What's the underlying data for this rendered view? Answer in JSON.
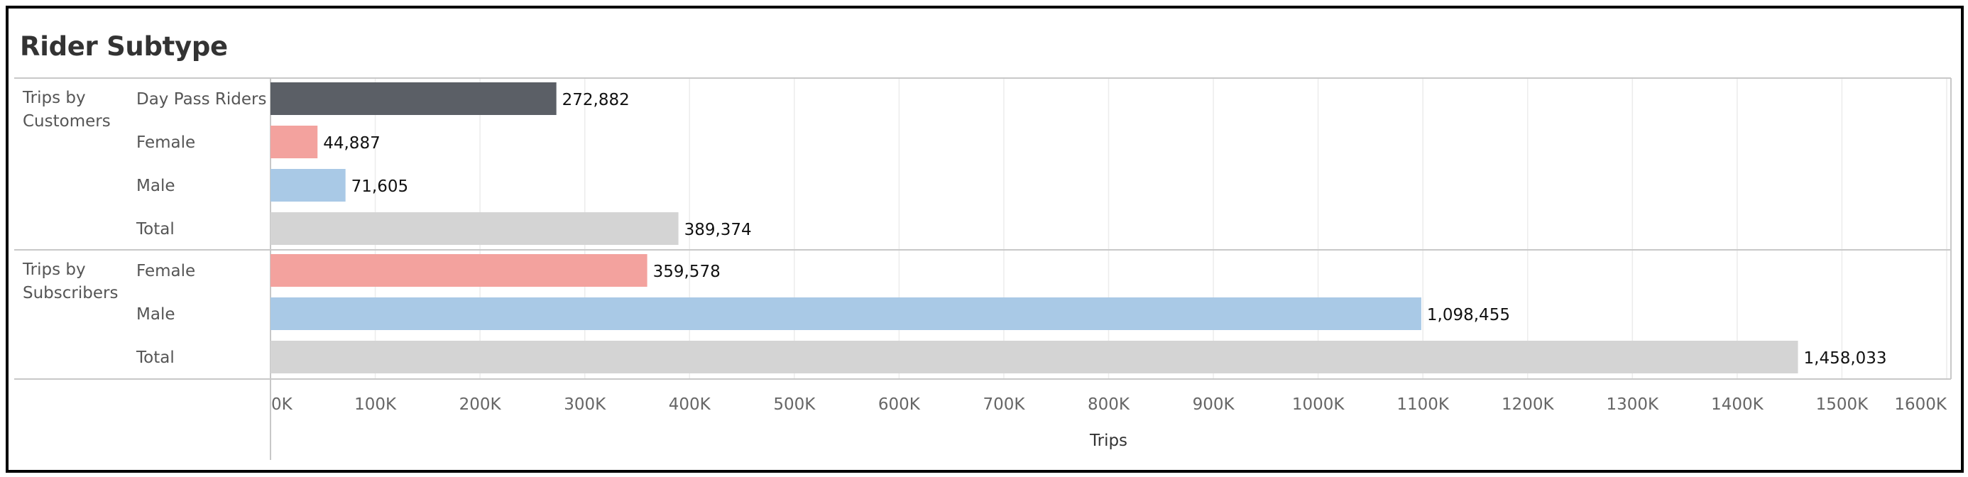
{
  "chart_data": {
    "type": "bar",
    "orientation": "horizontal",
    "title": "Rider Subtype",
    "xlabel": "Trips",
    "xlim": [
      0,
      1600000
    ],
    "ticks": [
      0,
      100000,
      200000,
      300000,
      400000,
      500000,
      600000,
      700000,
      800000,
      900000,
      1000000,
      1100000,
      1200000,
      1300000,
      1400000,
      1500000,
      1600000
    ],
    "tick_labels": [
      "0K",
      "100K",
      "200K",
      "300K",
      "400K",
      "500K",
      "600K",
      "700K",
      "800K",
      "900K",
      "1000K",
      "1100K",
      "1200K",
      "1300K",
      "1400K",
      "1500K",
      "1600K"
    ],
    "grid": true,
    "groups": [
      {
        "label_lines": [
          "Trips by",
          "Customers"
        ],
        "bars": [
          {
            "category": "Day Pass Riders",
            "value": 272882,
            "value_label": "272,882",
            "color": "#5b5f66"
          },
          {
            "category": "Female",
            "value": 44887,
            "value_label": "44,887",
            "color": "#f3a29e"
          },
          {
            "category": "Male",
            "value": 71605,
            "value_label": "71,605",
            "color": "#a9c9e6"
          },
          {
            "category": "Total",
            "value": 389374,
            "value_label": "389,374",
            "color": "#d4d4d4"
          }
        ]
      },
      {
        "label_lines": [
          "Trips by",
          "Subscribers"
        ],
        "bars": [
          {
            "category": "Female",
            "value": 359578,
            "value_label": "359,578",
            "color": "#f3a29e"
          },
          {
            "category": "Male",
            "value": 1098455,
            "value_label": "1,098,455",
            "color": "#a9c9e6"
          },
          {
            "category": "Total",
            "value": 1458033,
            "value_label": "1,458,033",
            "color": "#d4d4d4"
          }
        ]
      }
    ]
  }
}
